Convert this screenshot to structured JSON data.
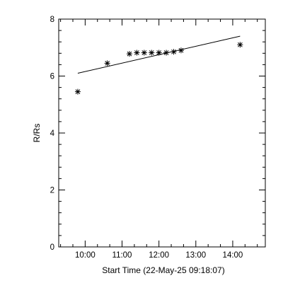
{
  "chart_data": {
    "type": "scatter",
    "xlabel": "Start Time (22-May-25 09:18:07)",
    "ylabel": "R/Rs",
    "xlim": [
      "09:17",
      "14:53"
    ],
    "ylim": [
      0,
      8
    ],
    "x_ticks": [
      "10:00",
      "11:00",
      "12:00",
      "13:00",
      "14:00"
    ],
    "y_ticks": [
      0,
      2,
      4,
      6,
      8
    ],
    "grid": false,
    "series": [
      {
        "marker": "asterisk",
        "points": [
          {
            "x": "09:48",
            "y": 5.45
          },
          {
            "x": "10:36",
            "y": 6.45
          },
          {
            "x": "11:12",
            "y": 6.78
          },
          {
            "x": "11:24",
            "y": 6.82
          },
          {
            "x": "11:36",
            "y": 6.82
          },
          {
            "x": "11:48",
            "y": 6.82
          },
          {
            "x": "12:00",
            "y": 6.82
          },
          {
            "x": "12:12",
            "y": 6.82
          },
          {
            "x": "12:24",
            "y": 6.85
          },
          {
            "x": "12:36",
            "y": 6.9
          },
          {
            "x": "14:12",
            "y": 7.1
          }
        ]
      }
    ],
    "fit_line": {
      "start": {
        "x": "09:48",
        "y": 6.1
      },
      "end": {
        "x": "14:12",
        "y": 7.4
      }
    }
  }
}
